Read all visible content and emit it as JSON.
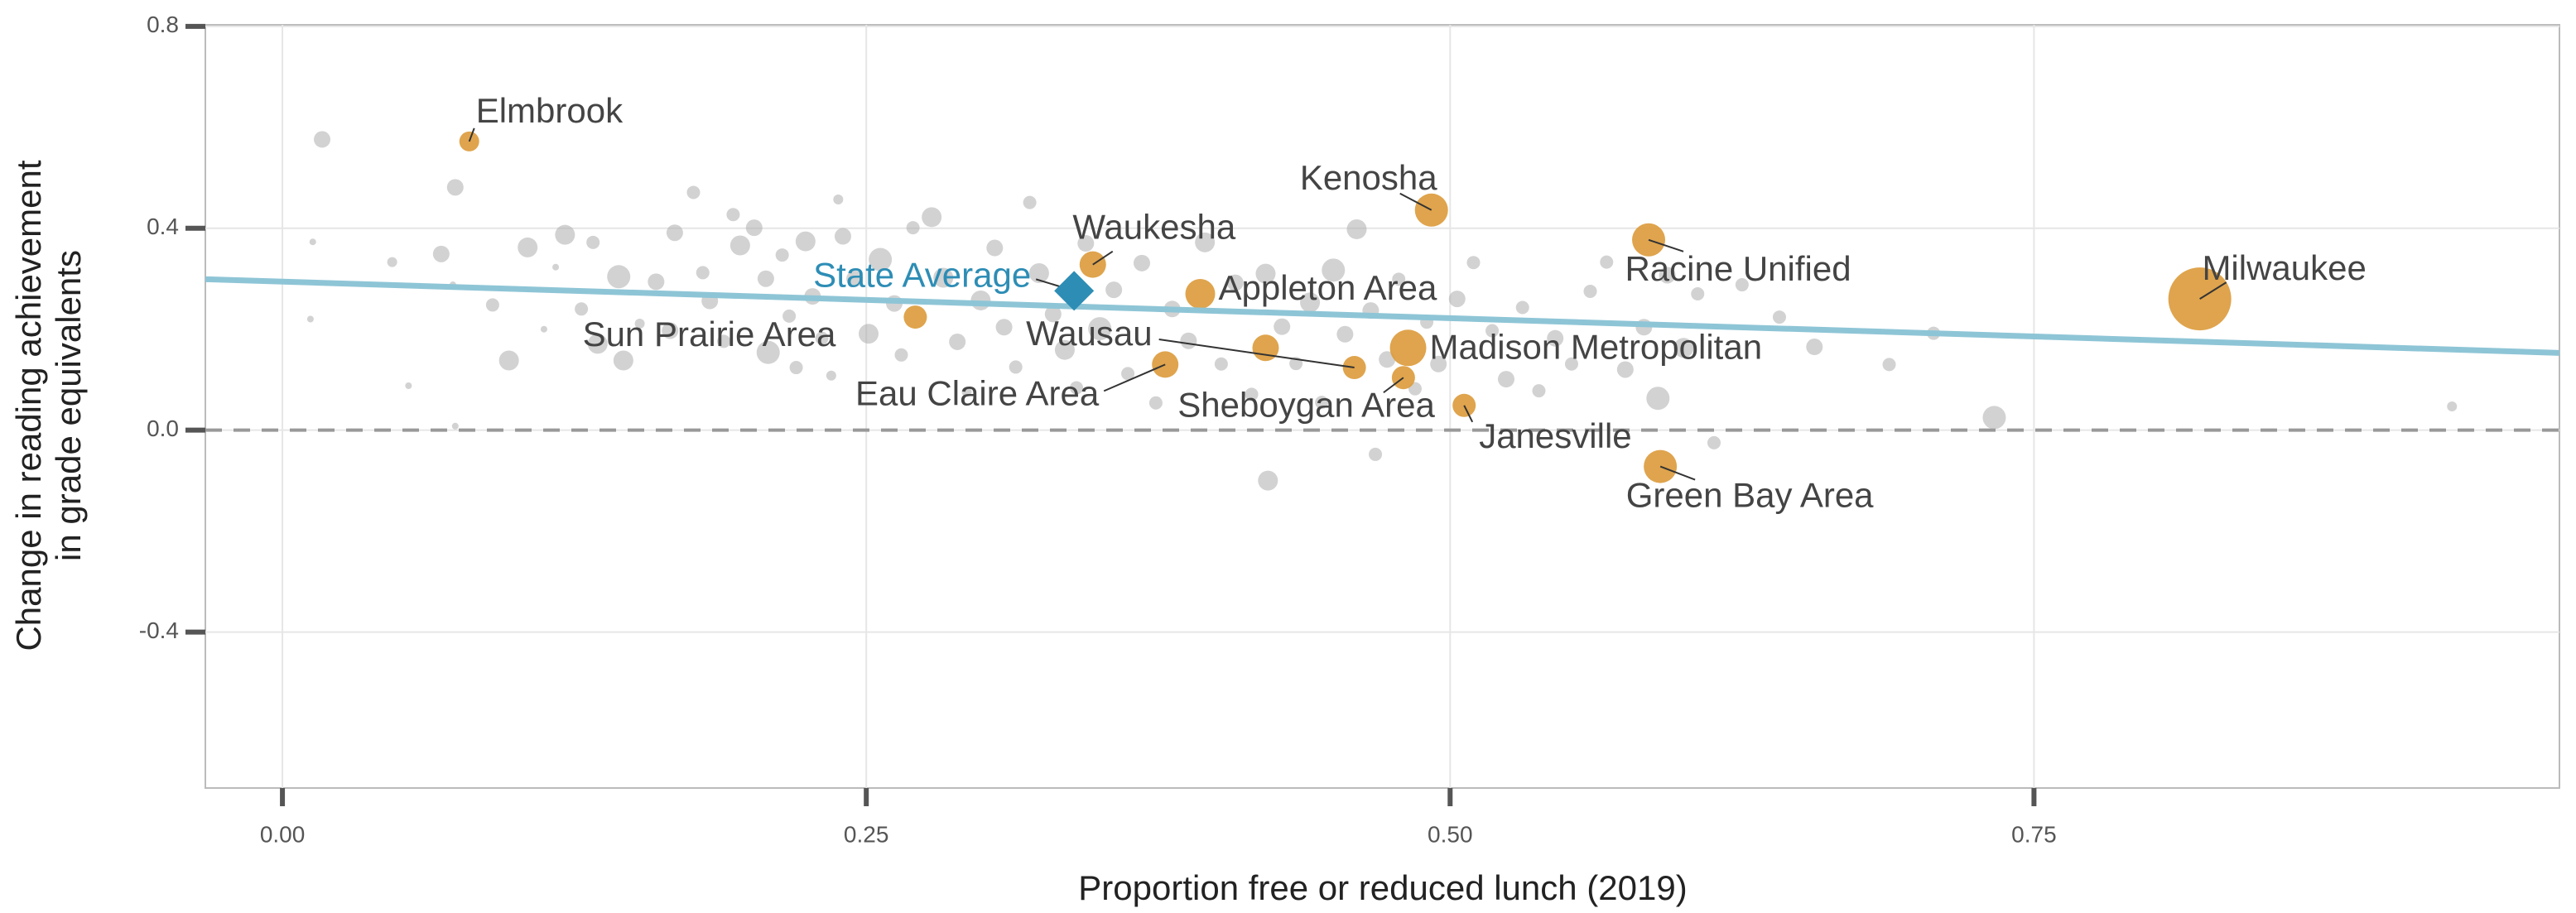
{
  "chart_data": {
    "type": "scatter",
    "xlabel": "Proportion free or reduced lunch (2019)",
    "ylabel": [
      "Change in reading  achievement",
      "in grade equivalents"
    ],
    "xlim": [
      -0.033,
      0.975
    ],
    "ylim": [
      -0.709,
      0.803
    ],
    "xticks": [
      {
        "value": 0,
        "label": "0.00"
      },
      0.25,
      {
        "value": 0.5,
        "label": "0.50"
      },
      0.75
    ],
    "yticks": [
      {
        "value": 0.8,
        "label": "0.8"
      },
      {
        "value": 0.4,
        "label": "0.4"
      },
      {
        "value": 0,
        "label": "0.0"
      },
      {
        "value": -0.4,
        "label": "-0.4"
      }
    ],
    "grid": true,
    "reference_line": 0,
    "trend": {
      "color": "#8ec5d6",
      "x": [
        -0.033,
        0.975
      ],
      "values": [
        0.299,
        0.153
      ]
    },
    "series": [
      {
        "color": "#a6a6a6",
        "x": [
          0.017,
          0.013,
          0.012,
          0.047,
          0.054,
          0.068,
          0.074,
          0.073,
          0.074,
          0.09,
          0.097,
          0.105,
          0.112,
          0.117,
          0.121,
          0.128,
          0.133,
          0.135,
          0.144,
          0.146,
          0.153,
          0.16,
          0.166,
          0.168,
          0.176,
          0.18,
          0.183,
          0.189,
          0.193,
          0.196,
          0.202,
          0.207,
          0.208,
          0.214,
          0.217,
          0.22,
          0.224,
          0.227,
          0.231,
          0.235,
          0.238,
          0.24,
          0.245,
          0.251,
          0.256,
          0.262,
          0.265,
          0.27,
          0.278,
          0.283,
          0.289,
          0.293,
          0.299,
          0.305,
          0.309,
          0.314,
          0.32,
          0.324,
          0.33,
          0.335,
          0.34,
          0.344,
          0.35,
          0.356,
          0.362,
          0.368,
          0.374,
          0.381,
          0.388,
          0.395,
          0.402,
          0.408,
          0.415,
          0.421,
          0.422,
          0.428,
          0.434,
          0.44,
          0.445,
          0.45,
          0.455,
          0.46,
          0.466,
          0.468,
          0.473,
          0.478,
          0.485,
          0.49,
          0.495,
          0.503,
          0.51,
          0.518,
          0.524,
          0.531,
          0.538,
          0.545,
          0.552,
          0.56,
          0.567,
          0.575,
          0.583,
          0.589,
          0.593,
          0.6,
          0.606,
          0.613,
          0.625,
          0.641,
          0.656,
          0.688,
          0.707,
          0.733,
          0.929
        ],
        "values": [
          0.576,
          0.373,
          0.22,
          0.333,
          0.088,
          0.349,
          0.481,
          0.288,
          0.008,
          0.248,
          0.138,
          0.362,
          0.2,
          0.323,
          0.387,
          0.24,
          0.372,
          0.171,
          0.304,
          0.138,
          0.211,
          0.294,
          0.197,
          0.391,
          0.471,
          0.312,
          0.256,
          0.176,
          0.427,
          0.366,
          0.401,
          0.3,
          0.154,
          0.347,
          0.226,
          0.124,
          0.374,
          0.265,
          0.182,
          0.108,
          0.457,
          0.384,
          0.3,
          0.191,
          0.338,
          0.251,
          0.149,
          0.401,
          0.422,
          0.302,
          0.175,
          0.076,
          0.257,
          0.361,
          0.204,
          0.125,
          0.451,
          0.311,
          0.23,
          0.159,
          0.084,
          0.37,
          0.201,
          0.278,
          0.112,
          0.331,
          0.054,
          0.24,
          0.177,
          0.372,
          0.131,
          0.292,
          0.071,
          0.31,
          -0.1,
          0.205,
          0.132,
          0.253,
          0.055,
          0.317,
          0.19,
          0.398,
          0.237,
          -0.048,
          0.14,
          0.299,
          0.082,
          0.214,
          0.131,
          0.26,
          0.332,
          0.197,
          0.101,
          0.243,
          0.078,
          0.182,
          0.131,
          0.275,
          0.333,
          0.12,
          0.204,
          0.063,
          0.307,
          0.163,
          0.27,
          -0.025,
          0.288,
          0.224,
          0.165,
          0.13,
          0.192,
          0.025,
          0.047
        ],
        "sizes": [
          5,
          2,
          2,
          3,
          2,
          5,
          5,
          2,
          2,
          4,
          6,
          6,
          2,
          2,
          6,
          4,
          4,
          6,
          7,
          6,
          3,
          5,
          5,
          5,
          4,
          4,
          5,
          4,
          4,
          6,
          5,
          5,
          7,
          4,
          4,
          4,
          6,
          5,
          4,
          3,
          3,
          5,
          5,
          6,
          7,
          5,
          4,
          4,
          6,
          6,
          5,
          3,
          6,
          5,
          5,
          4,
          4,
          6,
          5,
          6,
          4,
          5,
          7,
          5,
          4,
          5,
          4,
          5,
          5,
          6,
          4,
          5,
          4,
          6,
          6,
          5,
          4,
          6,
          4,
          7,
          5,
          6,
          5,
          4,
          5,
          4,
          4,
          4,
          5,
          5,
          4,
          4,
          5,
          4,
          4,
          5,
          4,
          4,
          4,
          5,
          5,
          7,
          5,
          6,
          4,
          4,
          4,
          4,
          5,
          4,
          4,
          7,
          3
        ]
      },
      {
        "color": "#dc9a3a",
        "x": [
          0.08,
          0.492,
          0.347,
          0.393,
          0.585,
          0.821,
          0.271,
          0.459,
          0.378,
          0.48,
          0.482,
          0.506,
          0.59,
          0.421
        ],
        "values": [
          0.572,
          0.436,
          0.328,
          0.27,
          0.377,
          0.26,
          0.224,
          0.124,
          0.13,
          0.104,
          0.163,
          0.049,
          -0.072,
          0.163
        ],
        "sizes": [
          6,
          10,
          8,
          9,
          10,
          19,
          7,
          7,
          8,
          7,
          11,
          7,
          10,
          8
        ],
        "labels": [
          "Elmbrook",
          "Kenosha",
          "Waukesha",
          "Appleton Area",
          "Racine Unified",
          "Milwaukee",
          "Sun Prairie Area",
          "Wausau",
          "Eau Claire Area",
          "Sheboygan Area",
          "Madison Metropolitan",
          "Janesville",
          "Green Bay Area",
          null
        ]
      }
    ],
    "state_average": {
      "label": "State Average",
      "color": "#2d8db5",
      "x": 0.339,
      "value": 0.276
    }
  }
}
